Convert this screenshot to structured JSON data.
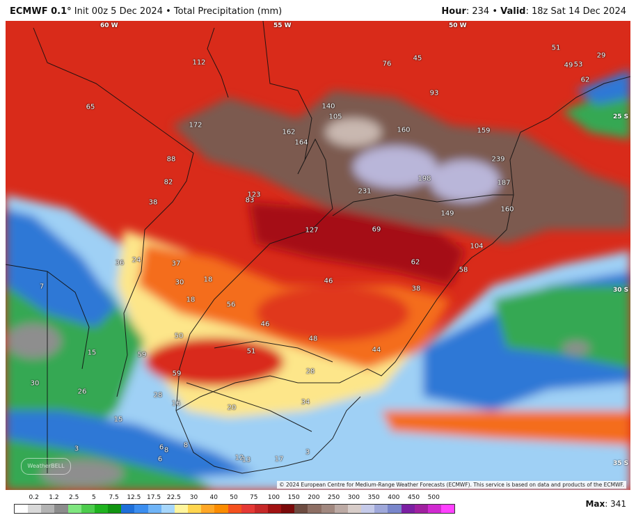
{
  "header": {
    "model": "ECMWF 0.1°",
    "init": " Init 00z 5 Dec 2024 • Total Precipitation (mm)",
    "hour_label": "Hour",
    "hour_value": ": 234 • ",
    "valid_label": "Valid",
    "valid_value": ": 18z Sat 14 Dec 2024"
  },
  "coordinates": {
    "lon_60": "60 W",
    "lon_55": "55 W",
    "lon_50": "50 W",
    "lat_25": "25 S",
    "lat_30": "30 S",
    "lat_35": "35 S"
  },
  "precip_labels": [
    {
      "v": "112"
    },
    {
      "v": "76"
    },
    {
      "v": "45"
    },
    {
      "v": "51"
    },
    {
      "v": "29"
    },
    {
      "v": "53"
    },
    {
      "v": "49"
    },
    {
      "v": "62"
    },
    {
      "v": "93"
    },
    {
      "v": "65"
    },
    {
      "v": "140"
    },
    {
      "v": "105"
    },
    {
      "v": "172"
    },
    {
      "v": "162"
    },
    {
      "v": "164"
    },
    {
      "v": "160"
    },
    {
      "v": "159"
    },
    {
      "v": "88"
    },
    {
      "v": "239"
    },
    {
      "v": "82"
    },
    {
      "v": "198"
    },
    {
      "v": "187"
    },
    {
      "v": "123"
    },
    {
      "v": "83"
    },
    {
      "v": "231"
    },
    {
      "v": "38"
    },
    {
      "v": "160"
    },
    {
      "v": "149"
    },
    {
      "v": "127"
    },
    {
      "v": "69"
    },
    {
      "v": "104"
    },
    {
      "v": "36"
    },
    {
      "v": "24"
    },
    {
      "v": "37"
    },
    {
      "v": "62"
    },
    {
      "v": "58"
    },
    {
      "v": "30"
    },
    {
      "v": "18"
    },
    {
      "v": "46"
    },
    {
      "v": "7"
    },
    {
      "v": "38"
    },
    {
      "v": "18"
    },
    {
      "v": "56"
    },
    {
      "v": "46"
    },
    {
      "v": "50"
    },
    {
      "v": "48"
    },
    {
      "v": "15"
    },
    {
      "v": "59"
    },
    {
      "v": "51"
    },
    {
      "v": "44"
    },
    {
      "v": "59"
    },
    {
      "v": "28"
    },
    {
      "v": "30"
    },
    {
      "v": "26"
    },
    {
      "v": "28"
    },
    {
      "v": "16"
    },
    {
      "v": "20"
    },
    {
      "v": "34"
    },
    {
      "v": "15"
    },
    {
      "v": "3"
    },
    {
      "v": "8"
    },
    {
      "v": "6"
    },
    {
      "v": "8"
    },
    {
      "v": "6"
    },
    {
      "v": "12"
    },
    {
      "v": "13"
    },
    {
      "v": "17"
    },
    {
      "v": "3"
    }
  ],
  "copyright": "© 2024 European Centre for Medium-Range Weather Forecasts (ECMWF). This service is based on data and products of the ECMWF.",
  "logo_text": "WeatherBELL",
  "legend": {
    "labels": [
      "0.2",
      "1.2",
      "2.5",
      "5",
      "7.5",
      "12.5",
      "17.5",
      "22.5",
      "30",
      "40",
      "50",
      "75",
      "100",
      "150",
      "200",
      "250",
      "300",
      "350",
      "400",
      "450",
      "500"
    ],
    "colors": [
      "#ffffff",
      "#d9d9d9",
      "#b3b3b3",
      "#8c8c8c",
      "#7fe67f",
      "#4dcc4d",
      "#1fb31f",
      "#119411",
      "#1e6fd9",
      "#3b8ef0",
      "#6fb4f7",
      "#a6d6fb",
      "#fff59d",
      "#ffd54f",
      "#ffa726",
      "#fb8c00",
      "#f4511e",
      "#e53935",
      "#c62828",
      "#a11212",
      "#7a0a0a",
      "#6d4c41",
      "#8d6e63",
      "#a1887f",
      "#bcaaa4",
      "#d7ccc8",
      "#c5cae9",
      "#9fa8da",
      "#7986cb",
      "#7b1fa2",
      "#a020a0",
      "#d02ad0",
      "#ff40ff"
    ]
  },
  "max": {
    "label": "Max",
    "value": ": 341"
  },
  "palette": {
    "red": "#d92b1a",
    "dark_red": "#a50f15",
    "orange": "#f46d1a",
    "yellow": "#fde68a",
    "green": "#34a853",
    "blue": "#2f78d6",
    "lightblue": "#9fd0f5",
    "brown": "#7b5a4f",
    "lavender": "#b9b6d9",
    "gray": "#8e8e8e"
  }
}
